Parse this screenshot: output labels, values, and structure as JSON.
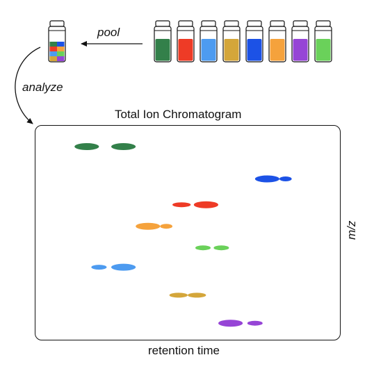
{
  "labels": {
    "pool": "pool",
    "analyze": "analyze",
    "title": "Total Ion Chromatogram",
    "xlabel": "retention time",
    "ylabel": "m/z"
  },
  "vial_colors": [
    "#33804a",
    "#ee3b26",
    "#4d9bf0",
    "#d4a63a",
    "#1c52e6",
    "#f5a23c",
    "#9645d6",
    "#6ad15a"
  ],
  "chart_data": {
    "type": "scatter",
    "title": "Total Ion Chromatogram",
    "xlabel": "retention time",
    "ylabel": "m/z",
    "grid": false,
    "spots": [
      {
        "color": "#33804a",
        "x": [
          0.17,
          0.29
        ],
        "y": 0.9,
        "w": [
          0.08,
          0.08
        ]
      },
      {
        "color": "#1c52e6",
        "x": [
          0.76,
          0.82
        ],
        "y": 0.75,
        "w": [
          0.08,
          0.04
        ]
      },
      {
        "color": "#ee3b26",
        "x": [
          0.48,
          0.56
        ],
        "y": 0.63,
        "w": [
          0.06,
          0.08
        ]
      },
      {
        "color": "#f5a23c",
        "x": [
          0.37,
          0.43
        ],
        "y": 0.53,
        "w": [
          0.08,
          0.04
        ]
      },
      {
        "color": "#6ad15a",
        "x": [
          0.55,
          0.61
        ],
        "y": 0.43,
        "w": [
          0.05,
          0.05
        ]
      },
      {
        "color": "#4d9bf0",
        "x": [
          0.21,
          0.29
        ],
        "y": 0.34,
        "w": [
          0.05,
          0.08
        ]
      },
      {
        "color": "#d4a63a",
        "x": [
          0.47,
          0.53
        ],
        "y": 0.21,
        "w": [
          0.06,
          0.06
        ]
      },
      {
        "color": "#9645d6",
        "x": [
          0.64,
          0.72
        ],
        "y": 0.08,
        "w": [
          0.08,
          0.05
        ]
      }
    ]
  }
}
